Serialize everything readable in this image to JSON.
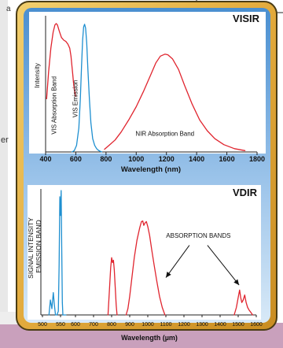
{
  "background_text": {
    "fragment_top": "a",
    "fragment_mid": "er"
  },
  "colors": {
    "frame_gold": "#e6b247",
    "frame_dark": "#4a3c14",
    "panel_blue_top": "#4a8fd0",
    "panel_blue_bottom": "#cfe3f5",
    "red_series": "#e0242e",
    "blue_series": "#1e8fd0",
    "mauve_footer": "#c9a0bc"
  },
  "chart_data": [
    {
      "id": "visir",
      "type": "line",
      "title": "VISIR",
      "xlabel": "Wavelength (nm)",
      "ylabel": "Intensity",
      "xlim": [
        400,
        1800
      ],
      "ylim": [
        0,
        1
      ],
      "x_ticks": [
        400,
        600,
        800,
        1000,
        1200,
        1400,
        1600,
        1800
      ],
      "grid": false,
      "series": [
        {
          "color": "#e0242e",
          "x": [
            407,
            420,
            435,
            450,
            462,
            470,
            478,
            490,
            505,
            520,
            535,
            548,
            560,
            568,
            575,
            580,
            585,
            590,
            595,
            598
          ],
          "y": [
            0.4,
            0.6,
            0.78,
            0.9,
            0.955,
            0.965,
            0.955,
            0.91,
            0.86,
            0.84,
            0.83,
            0.81,
            0.78,
            0.72,
            0.64,
            0.58,
            0.52,
            0.47,
            0.44,
            0.42
          ]
        },
        {
          "color": "#1e8fd0",
          "x": [
            575,
            590,
            605,
            620,
            630,
            638,
            645,
            652,
            658,
            665,
            672,
            680,
            690,
            700,
            712,
            725,
            738,
            750,
            762,
            772
          ],
          "y": [
            0.0,
            0.01,
            0.05,
            0.18,
            0.4,
            0.64,
            0.84,
            0.94,
            0.96,
            0.93,
            0.82,
            0.62,
            0.4,
            0.22,
            0.1,
            0.05,
            0.025,
            0.012,
            0.005,
            0.0
          ]
        },
        {
          "color": "#e0242e",
          "x": [
            790,
            820,
            860,
            900,
            950,
            1000,
            1050,
            1100,
            1130,
            1160,
            1190,
            1210,
            1240,
            1280,
            1320,
            1370,
            1420,
            1470,
            1520,
            1580,
            1650,
            1720
          ],
          "y": [
            0.02,
            0.05,
            0.09,
            0.15,
            0.24,
            0.34,
            0.46,
            0.59,
            0.67,
            0.72,
            0.735,
            0.73,
            0.7,
            0.62,
            0.5,
            0.36,
            0.24,
            0.16,
            0.1,
            0.055,
            0.025,
            0.01
          ]
        }
      ],
      "annotations": [
        {
          "text": "VIS Absorption Band",
          "x": 470,
          "y": 0.35,
          "rotate": -90
        },
        {
          "text": "VIS Emission",
          "x": 612,
          "y": 0.4,
          "rotate": -90
        },
        {
          "text": "NIR Absorption Band",
          "x": 1190,
          "y": 0.12,
          "rotate": 0
        }
      ]
    },
    {
      "id": "vdir",
      "type": "line",
      "title": "VDIR",
      "xlabel": "Wavelength (µm)",
      "ylabel": "SIGNAL INTENSITY",
      "ylabel2": "EMISSION BAND",
      "xlim": [
        500,
        1600
      ],
      "ylim": [
        0,
        1
      ],
      "x_ticks": [
        500,
        550,
        600,
        700,
        800,
        900,
        1000,
        1100,
        1200,
        1300,
        1400,
        1500,
        1600
      ],
      "grid": false,
      "series": [
        {
          "color": "#1e8fd0",
          "x": [
            518,
            522,
            526,
            530,
            533,
            536,
            540,
            544,
            546,
            548,
            550,
            552,
            554,
            556,
            558,
            560,
            562,
            564,
            566,
            568
          ],
          "y": [
            0.0,
            0.12,
            0.05,
            0.18,
            0.08,
            0.0,
            0.0,
            0.03,
            0.4,
            0.95,
            0.8,
            1.0,
            0.55,
            0.1,
            0.0,
            0.0,
            0.0,
            0.0,
            0.0,
            0.0
          ]
        },
        {
          "color": "#e0242e",
          "x": [
            780,
            788,
            795,
            800,
            805,
            810,
            815,
            820,
            825,
            830
          ],
          "y": [
            0.0,
            0.2,
            0.38,
            0.46,
            0.42,
            0.44,
            0.36,
            0.22,
            0.08,
            0.0
          ]
        },
        {
          "color": "#e0242e",
          "x": [
            880,
            890,
            900,
            912,
            925,
            940,
            955,
            965,
            972,
            978,
            985,
            992,
            1000,
            1010,
            1022,
            1035,
            1050,
            1065,
            1080,
            1095
          ],
          "y": [
            0.0,
            0.05,
            0.15,
            0.3,
            0.46,
            0.6,
            0.7,
            0.75,
            0.755,
            0.72,
            0.74,
            0.75,
            0.71,
            0.64,
            0.52,
            0.4,
            0.27,
            0.15,
            0.06,
            0.0
          ]
        },
        {
          "color": "#e0242e",
          "x": [
            1478,
            1490,
            1500,
            1508,
            1514,
            1520,
            1528,
            1536,
            1544,
            1552,
            1560,
            1570,
            1580
          ],
          "y": [
            0.0,
            0.06,
            0.14,
            0.2,
            0.14,
            0.1,
            0.12,
            0.16,
            0.1,
            0.06,
            0.04,
            0.02,
            0.0
          ]
        }
      ],
      "annotations": [
        {
          "text": "ABSORPTION BANDS",
          "x": 1280,
          "y": 0.62,
          "rotate": 0
        }
      ],
      "arrows": [
        {
          "from": [
            1230,
            0.56
          ],
          "to": [
            1100,
            0.3
          ]
        },
        {
          "from": [
            1330,
            0.56
          ],
          "to": [
            1505,
            0.24
          ]
        }
      ]
    }
  ]
}
